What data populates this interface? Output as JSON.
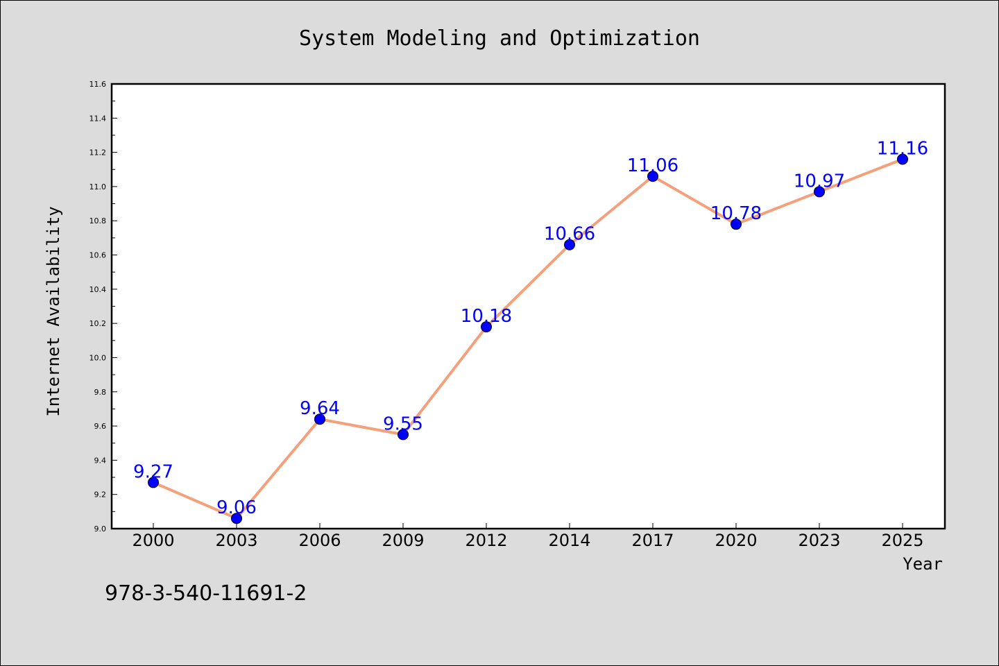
{
  "chart_data": {
    "type": "line",
    "title": "System Modeling and Optimization",
    "xlabel": "Year",
    "ylabel": "Internet Availability",
    "categories": [
      "2000",
      "2003",
      "2006",
      "2009",
      "2012",
      "2014",
      "2017",
      "2020",
      "2023",
      "2025"
    ],
    "series": [
      {
        "values": [
          9.27,
          9.06,
          9.64,
          9.55,
          10.18,
          10.66,
          11.06,
          10.78,
          10.97,
          11.16
        ],
        "data_labels": [
          "9.27",
          "9.06",
          "9.64",
          "9.55",
          "10.18",
          "10.66",
          "11.06",
          "10.78",
          "10.97",
          "11.16"
        ],
        "line_color": "#f4a07a",
        "marker_color": "#0000ff"
      }
    ],
    "ylim": [
      9.0,
      11.6
    ],
    "yticks": [
      "9.0",
      "9.2",
      "9.4",
      "9.6",
      "9.8",
      "10.0",
      "10.2",
      "10.4",
      "10.6",
      "10.8",
      "11.0",
      "11.2",
      "11.4",
      "11.6"
    ],
    "grid": false,
    "legend": false,
    "annotation": "978-3-540-11691-2",
    "colors": {
      "background": "#dcdcdc",
      "plot_area": "#ffffff",
      "label_text": "#0000ff"
    }
  }
}
